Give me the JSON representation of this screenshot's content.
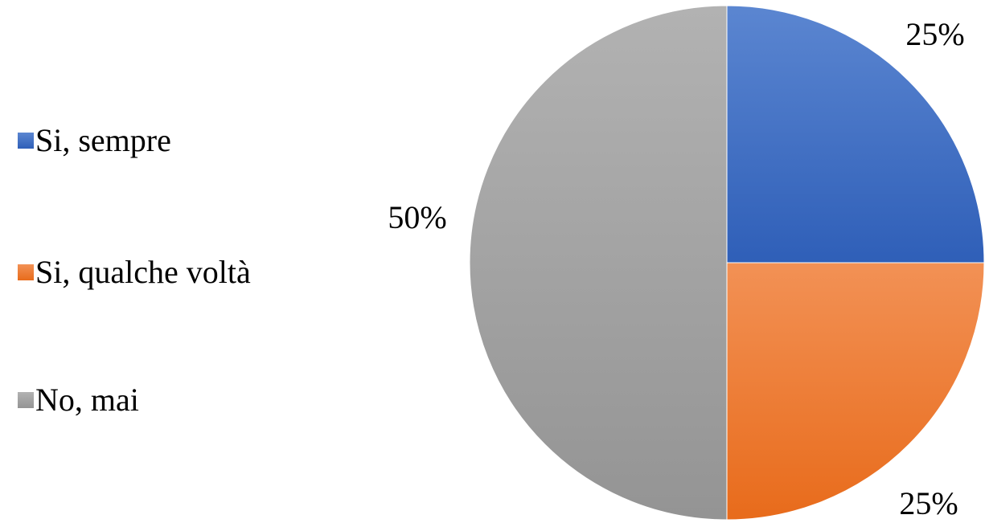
{
  "chart_data": {
    "type": "pie",
    "categories": [
      "Si, sempre",
      "Si, qualche voltà",
      "No, mai"
    ],
    "values": [
      25,
      25,
      50
    ],
    "value_labels": [
      "25%",
      "25%",
      "50%"
    ],
    "colors": [
      "#4472C4",
      "#ED7D31",
      "#A5A5A5"
    ],
    "legend": "left",
    "start_angle_deg": 0,
    "direction": "clockwise"
  }
}
